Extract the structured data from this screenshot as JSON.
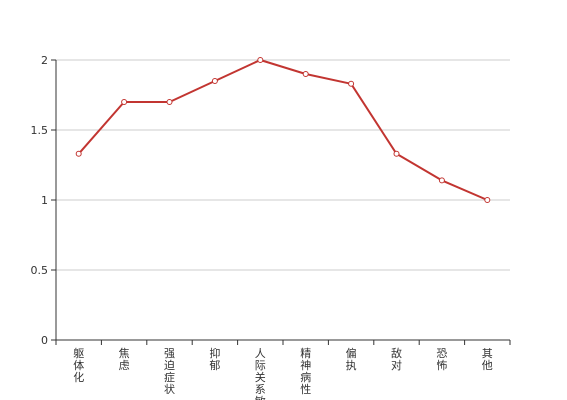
{
  "chart_data": {
    "type": "line",
    "categories": [
      "躯体化",
      "焦虑",
      "强迫症状",
      "抑郁",
      "人际关系敏感",
      "精神病性",
      "偏执",
      "敌对",
      "恐怖",
      "其他"
    ],
    "series": [
      {
        "values": [
          1.33,
          1.7,
          1.7,
          1.85,
          2.0,
          1.9,
          1.83,
          1.33,
          1.14,
          1.0
        ]
      }
    ],
    "y_ticks": [
      "0",
      "0.5",
      "1",
      "1.5",
      "2"
    ],
    "ylim": [
      0,
      2
    ],
    "grid": true,
    "line_color": "#c23531",
    "point_fill": "#ffffff",
    "axis_color": "#333333",
    "grid_color": "#cccccc"
  }
}
